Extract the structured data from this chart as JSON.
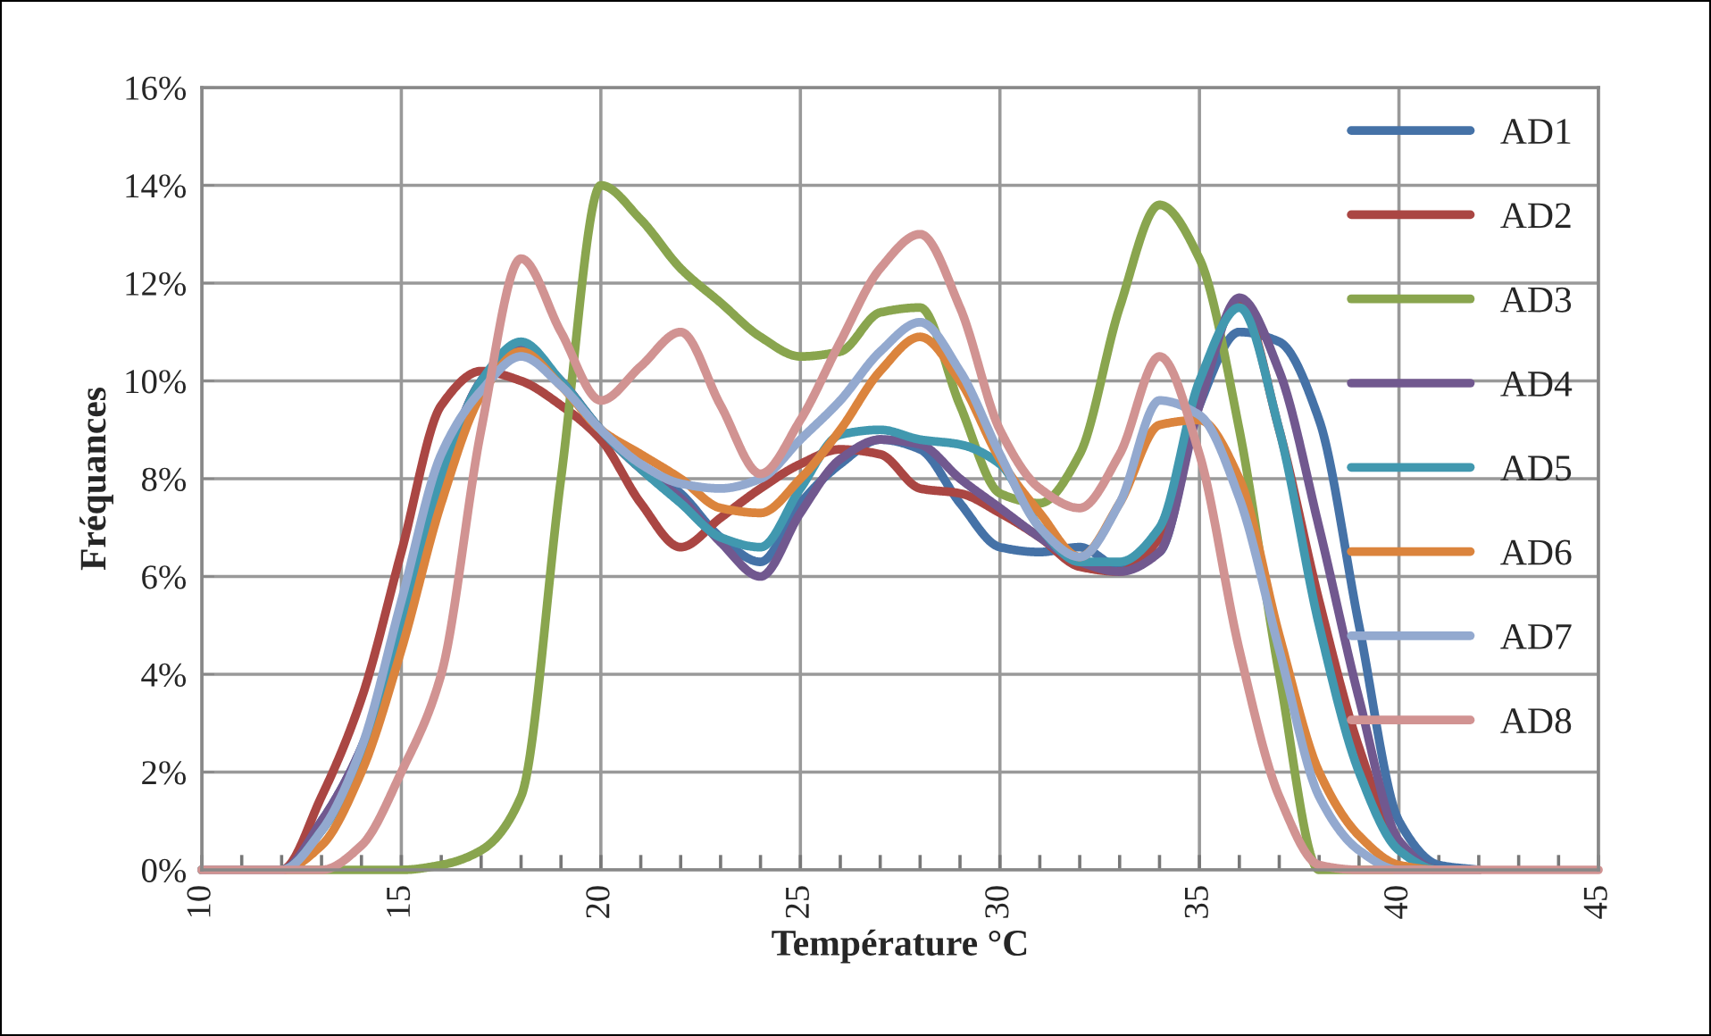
{
  "chart_data": {
    "type": "line",
    "xlabel": "Température °C",
    "ylabel": "Fréquances",
    "x": [
      10,
      11,
      12,
      13,
      14,
      15,
      16,
      17,
      18,
      19,
      20,
      21,
      22,
      23,
      24,
      25,
      26,
      27,
      28,
      29,
      30,
      31,
      32,
      33,
      34,
      35,
      36,
      37,
      38,
      39,
      40,
      41,
      42,
      43,
      44,
      45
    ],
    "series": [
      {
        "name": "AD1",
        "color": "#4572a7",
        "values": [
          0,
          0,
          0,
          1,
          2.5,
          5,
          8,
          10,
          10.7,
          10,
          9,
          8.3,
          7.7,
          6.8,
          6.3,
          7.5,
          8.3,
          8.8,
          8.6,
          7.5,
          6.6,
          6.5,
          6.6,
          6.2,
          6.5,
          9.5,
          11,
          10.8,
          9.2,
          5,
          1,
          0.1,
          0,
          null,
          null,
          null
        ]
      },
      {
        "name": "AD2",
        "color": "#aa4643",
        "values": [
          0,
          0,
          0,
          1.5,
          3.5,
          6.5,
          9.5,
          10.2,
          10,
          9.5,
          8.8,
          7.5,
          6.6,
          7.2,
          7.8,
          8.3,
          8.6,
          8.5,
          7.8,
          7.7,
          7.3,
          6.8,
          6.2,
          6.1,
          6.8,
          9.8,
          11.6,
          9,
          5.5,
          2.5,
          0.5,
          0,
          0,
          null,
          null,
          null
        ]
      },
      {
        "name": "AD3",
        "color": "#89a54e",
        "values": [
          0,
          0,
          0,
          0,
          0,
          0,
          0.1,
          0.4,
          1.5,
          8,
          14,
          13.3,
          12.3,
          11.6,
          10.9,
          10.5,
          10.6,
          11.4,
          11.5,
          9.5,
          7.7,
          7.5,
          8.5,
          11.5,
          13.6,
          12.5,
          9,
          4,
          0,
          0,
          0,
          0,
          0,
          null,
          null,
          null
        ]
      },
      {
        "name": "AD4",
        "color": "#71588f",
        "values": [
          0,
          0,
          0,
          1,
          2.5,
          5,
          8,
          10,
          10.7,
          10,
          9,
          8.2,
          7.6,
          6.7,
          6,
          7.3,
          8.4,
          8.8,
          8.7,
          8,
          7.4,
          6.8,
          6.3,
          6.1,
          6.5,
          9.5,
          11.7,
          10.2,
          7,
          3.5,
          0.6,
          0,
          0,
          null,
          null,
          null
        ]
      },
      {
        "name": "AD5",
        "color": "#4198af",
        "values": [
          0,
          0,
          0,
          0.8,
          2.3,
          5,
          8,
          10,
          10.8,
          10,
          9,
          8.2,
          7.5,
          6.8,
          6.6,
          7.8,
          8.9,
          9,
          8.8,
          8.7,
          8.3,
          7,
          6.3,
          6.3,
          7,
          10,
          11.5,
          9,
          5,
          2,
          0.4,
          0,
          0,
          null,
          null,
          null
        ]
      },
      {
        "name": "AD6",
        "color": "#db843d",
        "values": [
          0,
          0,
          0,
          0.5,
          2,
          4.5,
          7.5,
          9.7,
          10.6,
          9.9,
          9,
          8.5,
          8,
          7.4,
          7.3,
          8,
          9,
          10.2,
          10.9,
          10,
          8.4,
          7.3,
          6.4,
          7.5,
          9.1,
          9.2,
          8,
          4.8,
          2,
          0.7,
          0.1,
          0,
          0,
          null,
          null,
          null
        ]
      },
      {
        "name": "AD7",
        "color": "#93a9cf",
        "values": [
          0,
          0,
          0,
          0.8,
          2.5,
          5.5,
          8.5,
          9.8,
          10.5,
          9.9,
          9,
          8.3,
          7.9,
          7.8,
          8,
          8.8,
          9.6,
          10.6,
          11.2,
          10.2,
          8.5,
          7,
          6.4,
          7.5,
          9.6,
          9.3,
          7.6,
          4.5,
          1.5,
          0.4,
          0,
          0,
          0,
          null,
          null,
          null
        ]
      },
      {
        "name": "AD8",
        "color": "#d19392",
        "values": [
          0,
          0,
          0,
          0,
          0.5,
          2,
          4,
          9,
          12.5,
          11,
          9.6,
          10.3,
          11,
          9.5,
          8.1,
          9.2,
          10.8,
          12.3,
          13,
          11.5,
          9,
          7.8,
          7.4,
          8.5,
          10.5,
          8.5,
          4.5,
          1.5,
          0.1,
          0,
          0,
          0,
          0,
          0,
          0,
          0
        ]
      }
    ],
    "xlim": [
      10,
      45
    ],
    "xticks": [
      10,
      {
        "value": 11,
        "label": null
      },
      {
        "value": 12,
        "label": null
      },
      {
        "value": 13,
        "label": null
      },
      {
        "value": 14,
        "label": null
      },
      15,
      {
        "value": 16,
        "label": null
      },
      {
        "value": 17,
        "label": null
      },
      {
        "value": 18,
        "label": null
      },
      {
        "value": 19,
        "label": null
      },
      20,
      {
        "value": 21,
        "label": null
      },
      {
        "value": 22,
        "label": null
      },
      {
        "value": 23,
        "label": null
      },
      {
        "value": 24,
        "label": null
      },
      25,
      {
        "value": 26,
        "label": null
      },
      {
        "value": 27,
        "label": null
      },
      {
        "value": 28,
        "label": null
      },
      {
        "value": 29,
        "label": null
      },
      30,
      {
        "value": 31,
        "label": null
      },
      {
        "value": 32,
        "label": null
      },
      {
        "value": 33,
        "label": null
      },
      {
        "value": 34,
        "label": null
      },
      35,
      {
        "value": 36,
        "label": null
      },
      {
        "value": 37,
        "label": null
      },
      {
        "value": 38,
        "label": null
      },
      {
        "value": 39,
        "label": null
      },
      40,
      {
        "value": 41,
        "label": null
      },
      {
        "value": 42,
        "label": null
      },
      {
        "value": 43,
        "label": null
      },
      {
        "value": 44,
        "label": null
      },
      45
    ],
    "ylim": [
      0,
      16
    ],
    "yticks": [
      {
        "value": 0,
        "label": "0%"
      },
      {
        "value": 2,
        "label": "2%"
      },
      {
        "value": 4,
        "label": "4%"
      },
      {
        "value": 6,
        "label": "6%"
      },
      {
        "value": 8,
        "label": "8%"
      },
      {
        "value": 10,
        "label": "10%"
      },
      {
        "value": 12,
        "label": "12%"
      },
      {
        "value": 14,
        "label": "14%"
      },
      {
        "value": 16,
        "label": "16%"
      }
    ],
    "grid": true,
    "legend": "right",
    "marker": "none",
    "line_style": "solid"
  }
}
